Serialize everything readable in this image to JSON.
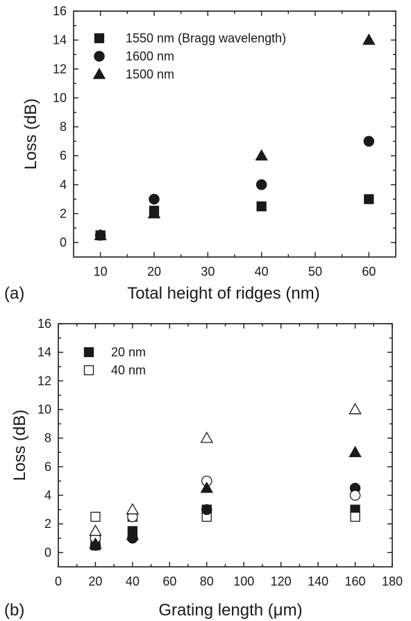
{
  "chart_data": [
    {
      "type": "scatter",
      "panel_label": "(a)",
      "xlabel": "Total height of ridges (nm)",
      "ylabel": "Loss (dB)",
      "xlim": [
        5,
        65
      ],
      "ylim": [
        -1,
        16
      ],
      "xticks": [
        10,
        20,
        30,
        40,
        50,
        60
      ],
      "yticks": [
        0,
        2,
        4,
        6,
        8,
        10,
        12,
        14,
        16
      ],
      "legend_position": "top-left",
      "series": [
        {
          "name": "1550 nm (Bragg wavelength)",
          "marker": "square",
          "fill": "filled",
          "x": [
            10,
            20,
            40,
            60
          ],
          "y": [
            0.5,
            2.2,
            2.5,
            3
          ]
        },
        {
          "name": "1600 nm",
          "marker": "circle",
          "fill": "filled",
          "x": [
            10,
            20,
            40,
            60
          ],
          "y": [
            0.5,
            3,
            4,
            7
          ]
        },
        {
          "name": "1500 nm",
          "marker": "triangle",
          "fill": "filled",
          "x": [
            10,
            20,
            40,
            60
          ],
          "y": [
            0.5,
            2,
            6,
            14
          ]
        }
      ]
    },
    {
      "type": "scatter",
      "panel_label": "(b)",
      "xlabel": "Grating length (μm)",
      "ylabel": "Loss (dB)",
      "xlim": [
        0,
        180
      ],
      "ylim": [
        -1,
        16
      ],
      "xticks": [
        0,
        20,
        40,
        60,
        80,
        100,
        120,
        140,
        160,
        180
      ],
      "yticks": [
        0,
        2,
        4,
        6,
        8,
        10,
        12,
        14,
        16
      ],
      "legend_position": "top-left",
      "series": [
        {
          "name": "20 nm",
          "marker": "square",
          "fill": "filled",
          "x": [
            20,
            40,
            80,
            160
          ],
          "y": [
            0.5,
            1.5,
            3,
            3
          ]
        },
        {
          "name": "40 nm",
          "marker": "square",
          "fill": "open",
          "x": [
            20,
            40,
            80,
            160
          ],
          "y": [
            2.5,
            2.5,
            2.5,
            2.5
          ]
        },
        {
          "marker": "circle",
          "fill": "filled",
          "x": [
            20,
            40,
            80,
            160
          ],
          "y": [
            0.5,
            1,
            3,
            4.5
          ]
        },
        {
          "marker": "circle",
          "fill": "open",
          "x": [
            20,
            40,
            80,
            160
          ],
          "y": [
            1,
            2.5,
            5,
            4
          ]
        },
        {
          "marker": "triangle",
          "fill": "filled",
          "x": [
            20,
            40,
            80,
            160
          ],
          "y": [
            0.6,
            1.2,
            4.5,
            7
          ]
        },
        {
          "marker": "triangle",
          "fill": "open",
          "x": [
            20,
            40,
            80,
            160
          ],
          "y": [
            1.5,
            3,
            8,
            10
          ]
        }
      ]
    }
  ]
}
